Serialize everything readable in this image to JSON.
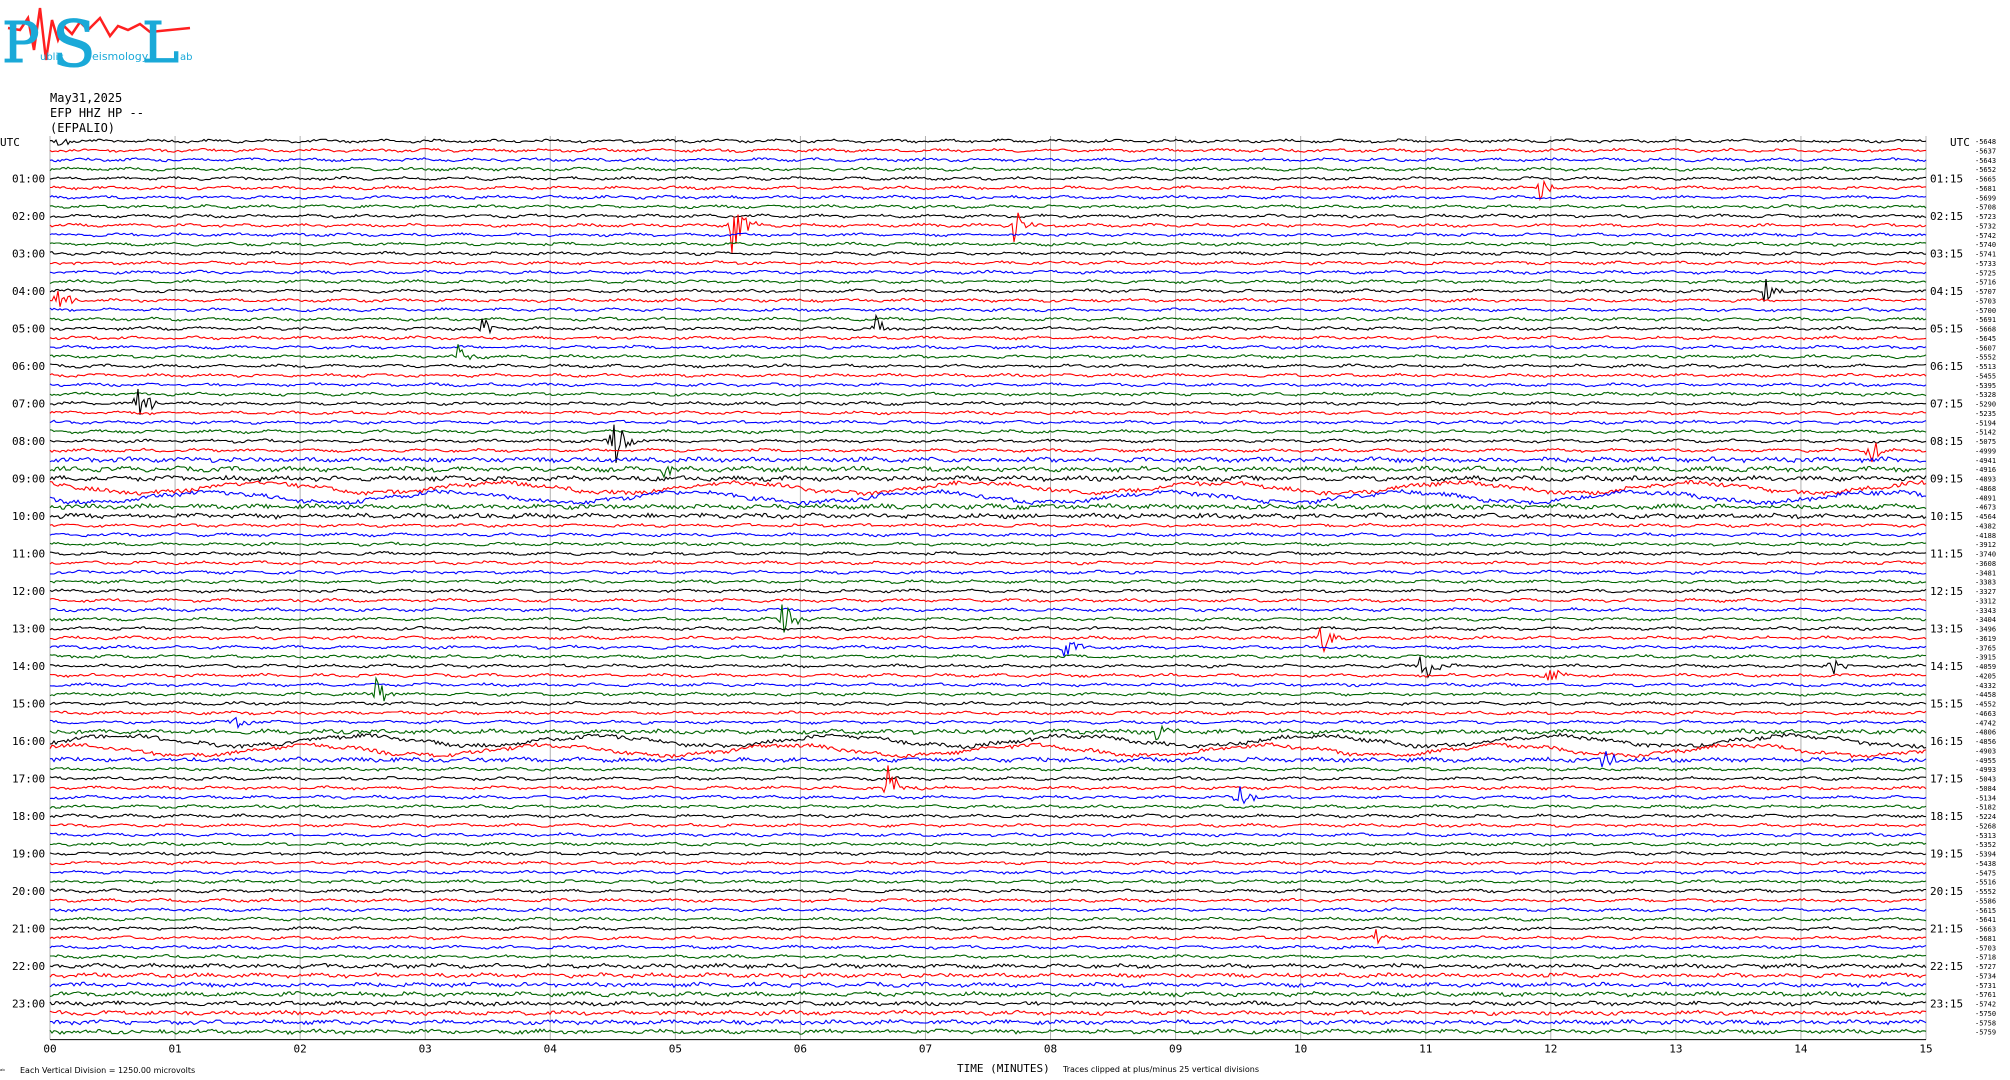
{
  "logo": {
    "big_letters": [
      "P",
      "S",
      "L"
    ],
    "small_words": [
      "ublic",
      "eismology",
      "ab"
    ]
  },
  "header": {
    "date": "May31,2025",
    "channel": "EFP HHZ HP --",
    "station": "(EFPALIO)"
  },
  "chart_data": {
    "type": "line",
    "subtype": "helicorder",
    "xlabel": "TIME (MINUTES)",
    "x_ticks": [
      "00",
      "01",
      "02",
      "03",
      "04",
      "05",
      "06",
      "07",
      "08",
      "09",
      "10",
      "11",
      "12",
      "13",
      "14",
      "15"
    ],
    "xlim": [
      0,
      15
    ],
    "left_axis_label": "UTC",
    "right_axis_label": "UTC",
    "left_hour_labels": [
      "01:00",
      "02:00",
      "03:00",
      "04:00",
      "05:00",
      "06:00",
      "07:00",
      "08:00",
      "09:00",
      "10:00",
      "11:00",
      "12:00",
      "13:00",
      "14:00",
      "15:00",
      "16:00",
      "17:00",
      "18:00",
      "19:00",
      "20:00",
      "21:00",
      "22:00",
      "23:00"
    ],
    "right_hour_labels": [
      "01:15",
      "02:15",
      "03:15",
      "04:15",
      "05:15",
      "06:15",
      "07:15",
      "08:15",
      "09:15",
      "10:15",
      "11:15",
      "12:15",
      "13:15",
      "14:15",
      "15:15",
      "16:15",
      "17:15",
      "18:15",
      "19:15",
      "20:15",
      "21:15",
      "22:15",
      "23:15"
    ],
    "trace_count": 96,
    "trace_colors": [
      "#000000",
      "#ff0000",
      "#0000ff",
      "#006400"
    ],
    "trace_offsets": [
      -5648,
      -5637,
      -5643,
      -5652,
      -5665,
      -5681,
      -5699,
      -5708,
      -5723,
      -5732,
      -5742,
      -5740,
      -5741,
      -5733,
      -5725,
      -5716,
      -5707,
      -5703,
      -5700,
      -5691,
      -5668,
      -5645,
      -5607,
      -5552,
      -5513,
      -5455,
      -5395,
      -5328,
      -5290,
      -5235,
      -5194,
      -5142,
      -5075,
      -4999,
      -4941,
      -4916,
      -4893,
      -4868,
      -4891,
      -4673,
      -4564,
      -4382,
      -4188,
      -3912,
      -3740,
      -3608,
      -3481,
      -3383,
      -3327,
      -3312,
      -3343,
      -3404,
      -3496,
      -3619,
      -3765,
      -3915,
      -4059,
      -4205,
      -4332,
      -4458,
      -4552,
      -4663,
      -4742,
      -4806,
      -4856,
      -4903,
      -4955,
      -4993,
      -5043,
      -5084,
      -5134,
      -5182,
      -5224,
      -5268,
      -5313,
      -5352,
      -5394,
      -5438,
      -5475,
      -5516,
      -5552,
      -5586,
      -5615,
      -5641,
      -5663,
      -5681,
      -5703,
      -5718,
      -5727,
      -5734,
      -5731,
      -5761,
      -5742,
      -5750,
      -5758,
      -5759
    ],
    "events": [
      {
        "trace": 0,
        "minute": 0.05,
        "amp": 0.5
      },
      {
        "trace": 5,
        "minute": 11.9,
        "amp": 0.9
      },
      {
        "trace": 9,
        "minute": 5.45,
        "amp": 2.0
      },
      {
        "trace": 9,
        "minute": 7.7,
        "amp": 1.3
      },
      {
        "trace": 16,
        "minute": 13.7,
        "amp": 0.8
      },
      {
        "trace": 17,
        "minute": 0.05,
        "amp": 1.0
      },
      {
        "trace": 20,
        "minute": 3.45,
        "amp": 1.0
      },
      {
        "trace": 20,
        "minute": 6.6,
        "amp": 0.8
      },
      {
        "trace": 23,
        "minute": 3.25,
        "amp": 0.7
      },
      {
        "trace": 28,
        "minute": 0.7,
        "amp": 1.4
      },
      {
        "trace": 32,
        "minute": 4.5,
        "amp": 2.0
      },
      {
        "trace": 33,
        "minute": 14.55,
        "amp": 1.0
      },
      {
        "trace": 35,
        "minute": 4.9,
        "amp": 0.5
      },
      {
        "trace": 51,
        "minute": 5.85,
        "amp": 1.3
      },
      {
        "trace": 53,
        "minute": 10.15,
        "amp": 1.5
      },
      {
        "trace": 54,
        "minute": 8.1,
        "amp": 0.8
      },
      {
        "trace": 56,
        "minute": 10.95,
        "amp": 1.6
      },
      {
        "trace": 56,
        "minute": 14.2,
        "amp": 1.2
      },
      {
        "trace": 57,
        "minute": 11.95,
        "amp": 0.9
      },
      {
        "trace": 59,
        "minute": 2.6,
        "amp": 1.1
      },
      {
        "trace": 62,
        "minute": 1.45,
        "amp": 0.7
      },
      {
        "trace": 63,
        "minute": 8.8,
        "amp": 0.9
      },
      {
        "trace": 66,
        "minute": 12.4,
        "amp": 0.9
      },
      {
        "trace": 69,
        "minute": 6.7,
        "amp": 1.3
      },
      {
        "trace": 70,
        "minute": 9.5,
        "amp": 1.2
      },
      {
        "trace": 85,
        "minute": 10.6,
        "amp": 0.5
      }
    ],
    "footer_left": "Each Vertical Division = 1250.00 microvolts",
    "footer_right": "Traces clipped at plus/minus 25 vertical divisions",
    "grid_vertical": true
  }
}
